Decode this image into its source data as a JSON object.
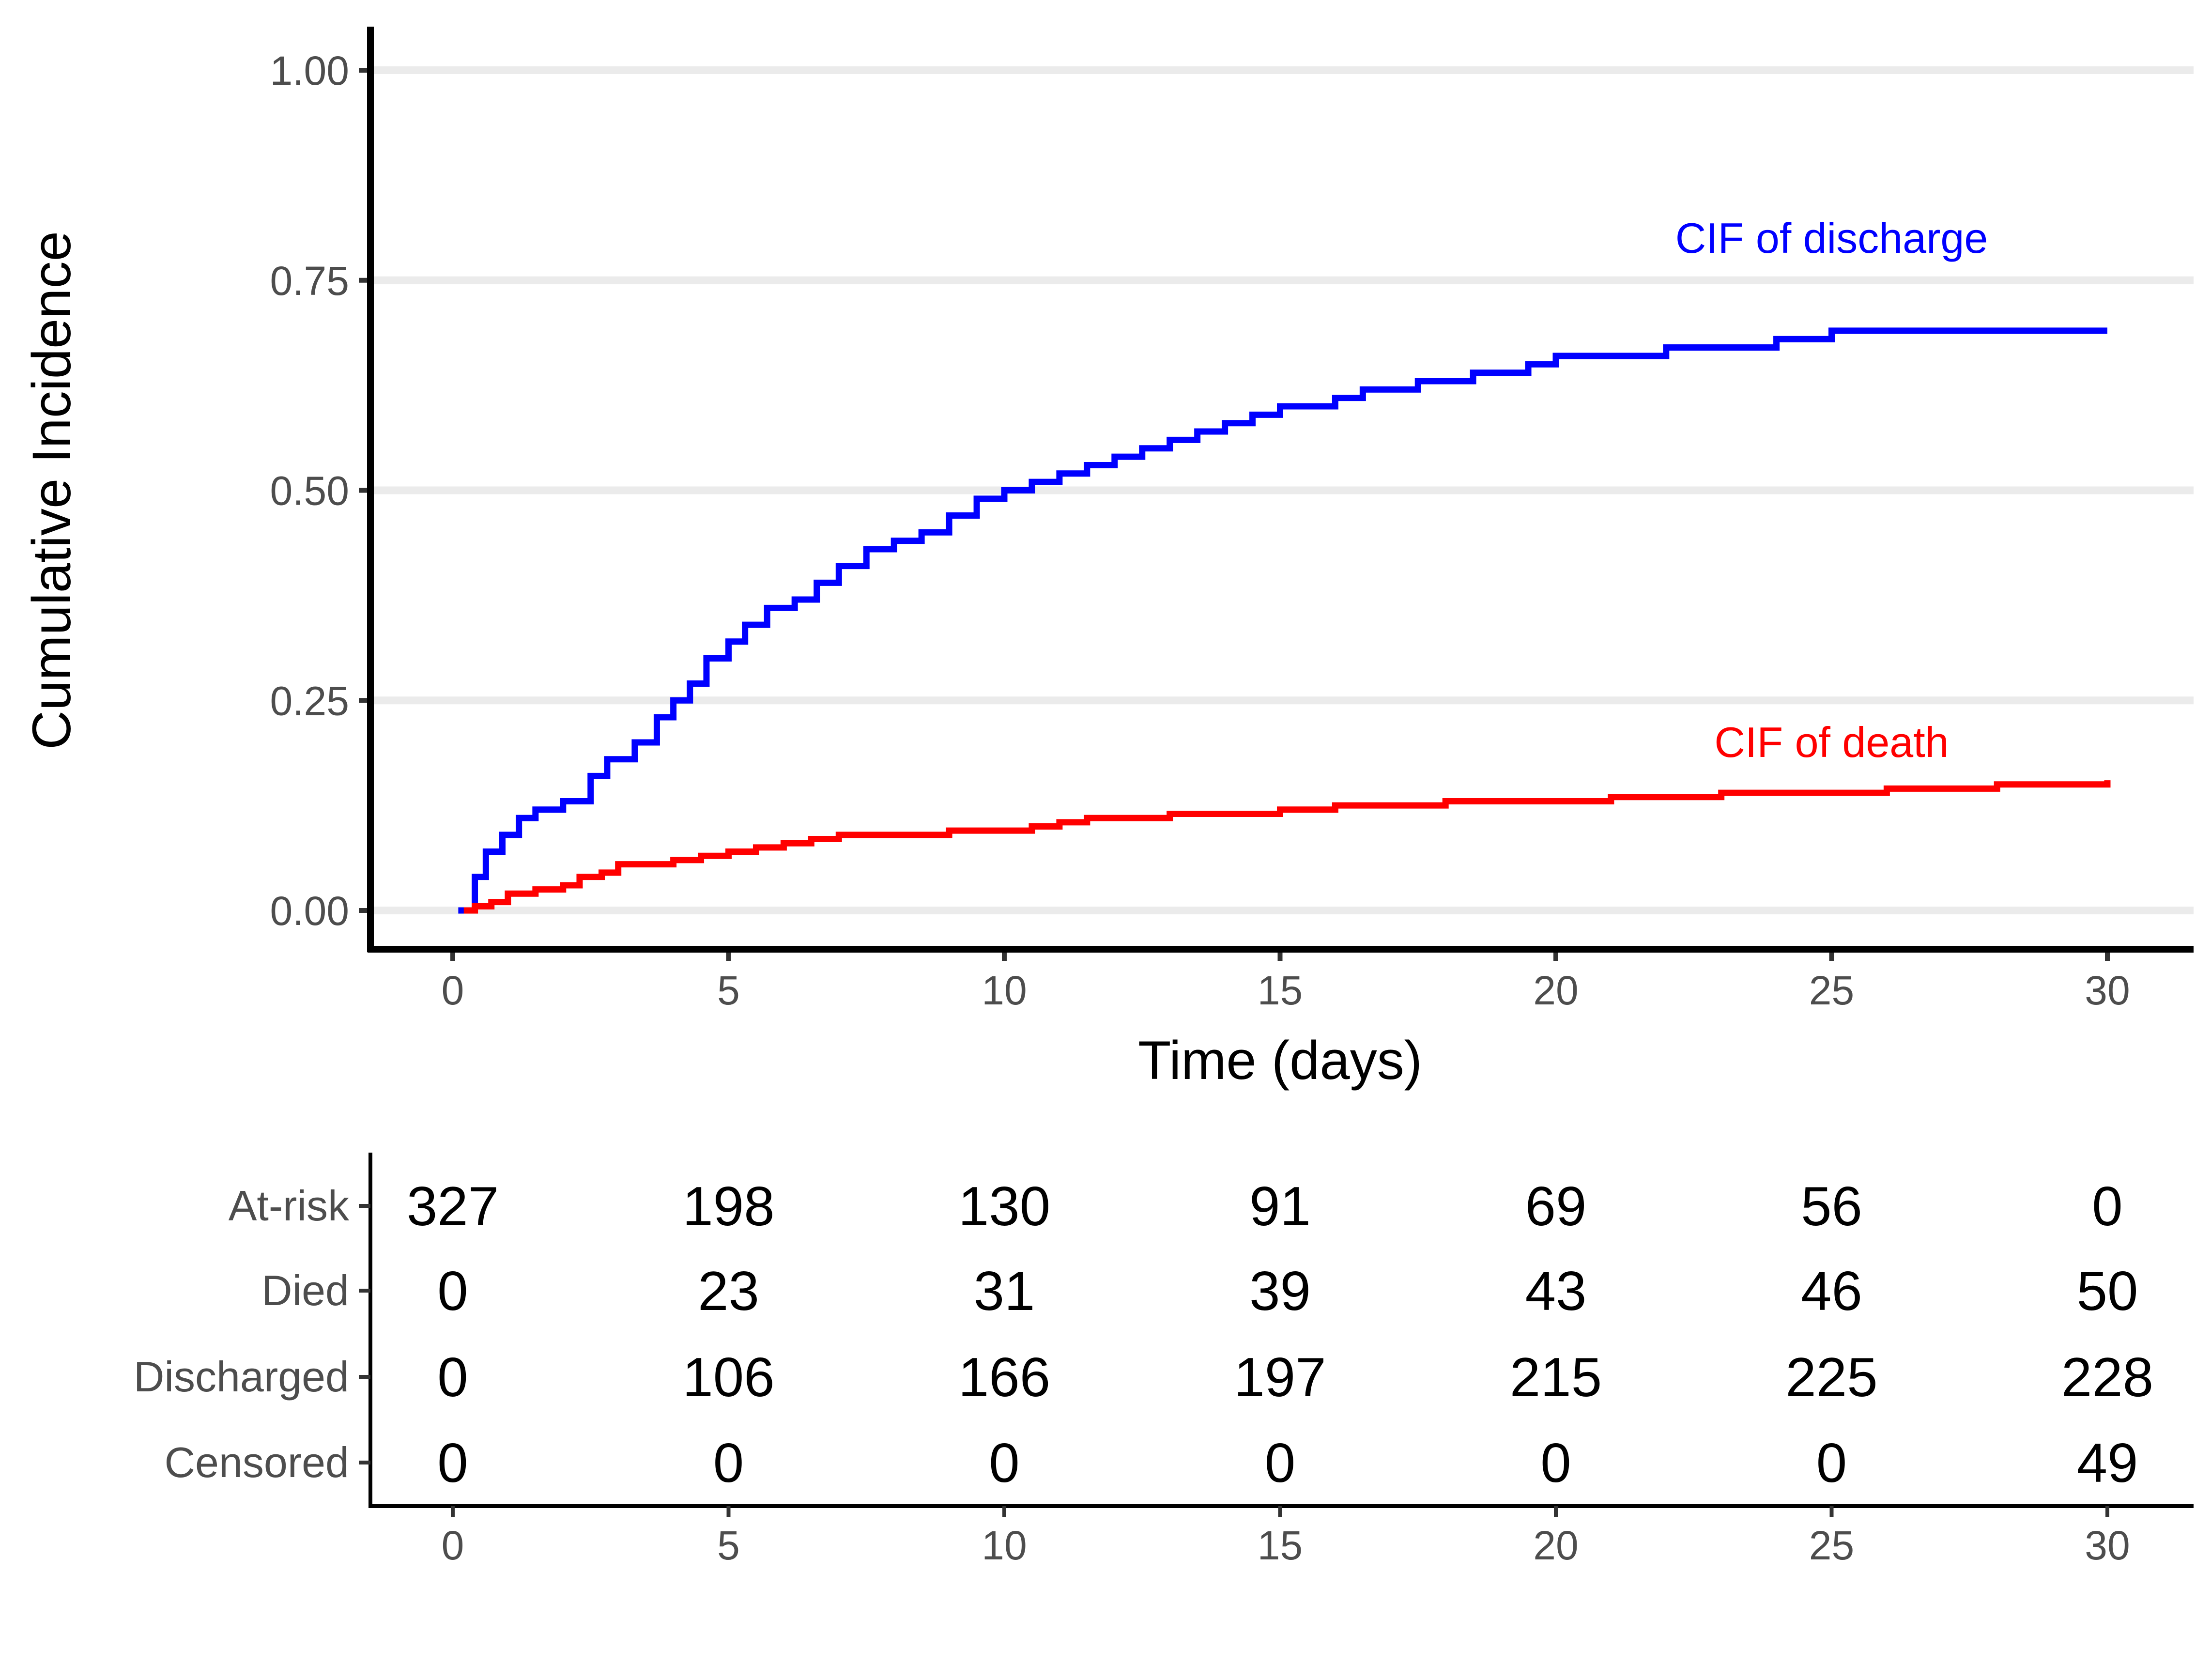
{
  "chart_data": {
    "type": "line",
    "xlabel": "Time (days)",
    "ylabel": "Cumulative Incidence",
    "xlim": [
      0,
      30
    ],
    "ylim": [
      0,
      1
    ],
    "x_ticks": [
      "0",
      "5",
      "10",
      "15",
      "20",
      "25",
      "30"
    ],
    "y_ticks": [
      "0.00",
      "0.25",
      "0.50",
      "0.75",
      "1.00"
    ],
    "grid": "horizontal major",
    "legend": "none (direct labels)",
    "series": [
      {
        "name": "CIF of discharge",
        "color": "#0000ff",
        "x": [
          0.1,
          0.4,
          0.6,
          0.9,
          1.2,
          1.5,
          2.0,
          2.5,
          2.8,
          3.3,
          3.7,
          4.0,
          4.3,
          4.6,
          5.0,
          5.3,
          5.7,
          6.2,
          6.6,
          7.0,
          7.5,
          8.0,
          8.5,
          9.0,
          9.5,
          10.0,
          10.5,
          11.0,
          11.5,
          12.0,
          12.5,
          13.0,
          13.5,
          14.0,
          14.5,
          15.0,
          15.5,
          16.0,
          16.5,
          17.0,
          17.5,
          18.0,
          18.5,
          19.0,
          19.5,
          20.0,
          21.0,
          22.0,
          23.0,
          24.0,
          24.5,
          25.0,
          26.0,
          27.0,
          28.0,
          29.0,
          30.0
        ],
        "y": [
          0.0,
          0.04,
          0.07,
          0.09,
          0.11,
          0.12,
          0.13,
          0.16,
          0.18,
          0.2,
          0.23,
          0.25,
          0.27,
          0.3,
          0.32,
          0.34,
          0.36,
          0.37,
          0.39,
          0.41,
          0.43,
          0.44,
          0.45,
          0.47,
          0.49,
          0.5,
          0.51,
          0.52,
          0.53,
          0.54,
          0.55,
          0.56,
          0.57,
          0.58,
          0.59,
          0.6,
          0.6,
          0.61,
          0.62,
          0.62,
          0.63,
          0.63,
          0.64,
          0.64,
          0.65,
          0.66,
          0.66,
          0.67,
          0.67,
          0.68,
          0.68,
          0.69,
          0.69,
          0.69,
          0.69,
          0.69,
          0.69
        ]
      },
      {
        "name": "CIF of death",
        "color": "#ff0000",
        "x": [
          0.2,
          0.4,
          0.7,
          1.0,
          1.5,
          2.0,
          2.3,
          2.7,
          3.0,
          4.0,
          4.5,
          5.0,
          5.5,
          6.0,
          6.5,
          7.0,
          8.0,
          9.0,
          10.0,
          10.5,
          11.0,
          11.5,
          12.0,
          13.0,
          14.0,
          15.0,
          15.5,
          16.0,
          17.0,
          18.0,
          19.0,
          20.0,
          21.0,
          22.0,
          23.0,
          24.0,
          25.0,
          26.0,
          27.0,
          28.0,
          29.0,
          30.0
        ],
        "y": [
          0.0,
          0.005,
          0.01,
          0.02,
          0.025,
          0.03,
          0.04,
          0.045,
          0.055,
          0.06,
          0.065,
          0.07,
          0.075,
          0.08,
          0.085,
          0.09,
          0.09,
          0.095,
          0.095,
          0.1,
          0.105,
          0.11,
          0.11,
          0.115,
          0.115,
          0.12,
          0.12,
          0.125,
          0.125,
          0.13,
          0.13,
          0.13,
          0.135,
          0.135,
          0.14,
          0.14,
          0.14,
          0.145,
          0.145,
          0.15,
          0.15,
          0.155
        ]
      }
    ],
    "annotations": [
      {
        "text": "CIF of discharge",
        "x": 25.0,
        "y": 0.8,
        "color": "#0000ff"
      },
      {
        "text": "CIF of death",
        "x": 25.0,
        "y": 0.2,
        "color": "#ff0000"
      }
    ],
    "risk_table": {
      "times": [
        0,
        5,
        10,
        15,
        20,
        25,
        30
      ],
      "x_ticks": [
        "0",
        "5",
        "10",
        "15",
        "20",
        "25",
        "30"
      ],
      "rows": [
        {
          "label": "At-risk",
          "values": [
            "327",
            "198",
            "130",
            "91",
            "69",
            "56",
            "0"
          ]
        },
        {
          "label": "Died",
          "values": [
            "0",
            "23",
            "31",
            "39",
            "43",
            "46",
            "50"
          ]
        },
        {
          "label": "Discharged",
          "values": [
            "0",
            "106",
            "166",
            "197",
            "215",
            "225",
            "228"
          ]
        },
        {
          "label": "Censored",
          "values": [
            "0",
            "0",
            "0",
            "0",
            "0",
            "0",
            "49"
          ]
        }
      ]
    }
  }
}
